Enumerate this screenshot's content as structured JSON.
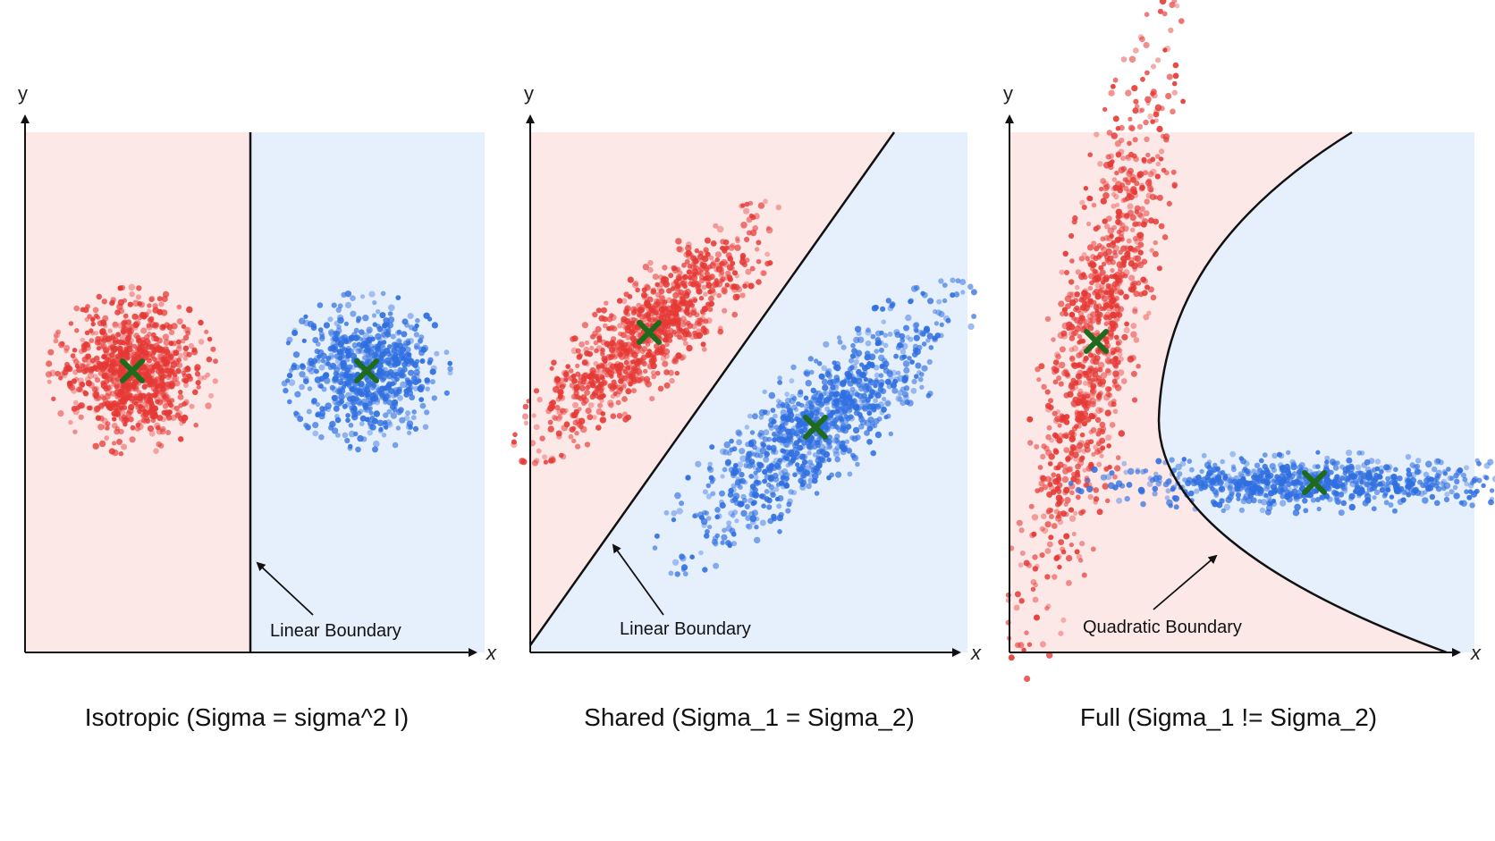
{
  "panels": [
    {
      "id": "isotropic",
      "caption": "Isotropic (Sigma = sigma^2 I)",
      "x_label": "x",
      "y_label": "y",
      "boundary_type": "linear",
      "boundary_label": "Linear Boundary",
      "class_colors": {
        "left": "#fde8e8",
        "right": "#e6effc"
      },
      "clusters": [
        {
          "color": "#e53935",
          "mean_marker": "x-mark-icon"
        },
        {
          "color": "#2f6fe0",
          "mean_marker": "x-mark-icon"
        }
      ]
    },
    {
      "id": "shared",
      "caption": "Shared (Sigma_1 = Sigma_2)",
      "x_label": "x",
      "y_label": "y",
      "boundary_type": "linear",
      "boundary_label": "Linear Boundary",
      "class_colors": {
        "left": "#fde8e8",
        "right": "#e6effc"
      },
      "clusters": [
        {
          "color": "#e53935",
          "mean_marker": "x-mark-icon"
        },
        {
          "color": "#2f6fe0",
          "mean_marker": "x-mark-icon"
        }
      ]
    },
    {
      "id": "full",
      "caption": "Full (Sigma_1 != Sigma_2)",
      "x_label": "x",
      "y_label": "y",
      "boundary_type": "quadratic",
      "boundary_label": "Quadratic Boundary",
      "class_colors": {
        "left": "#fde8e8",
        "right": "#e6effc"
      },
      "clusters": [
        {
          "color": "#e53935",
          "mean_marker": "x-mark-icon"
        },
        {
          "color": "#2f6fe0",
          "mean_marker": "x-mark-icon"
        }
      ]
    }
  ],
  "mean_marker_color": "#1e6b1e"
}
